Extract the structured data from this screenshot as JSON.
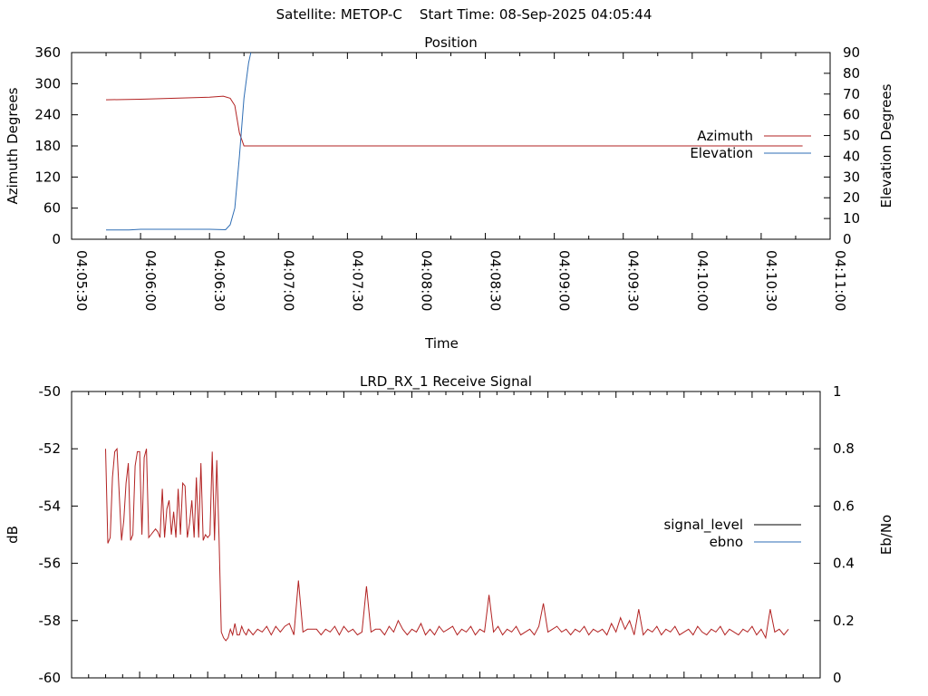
{
  "header": {
    "text": "Satellite: METOP-C    Start Time: 08-Sep-2025 04:05:44"
  },
  "chart_data": [
    {
      "type": "line",
      "title": "Position",
      "xlabel": "Time",
      "ylabel": "Azimuth Degrees",
      "y2label": "Elevation Degrees",
      "xlim": [
        "04:05:30",
        "04:11:00"
      ],
      "ylim": [
        0,
        360
      ],
      "y2lim": [
        0,
        90
      ],
      "x_ticks": [
        "04:05:30",
        "04:06:00",
        "04:06:30",
        "04:07:00",
        "04:07:30",
        "04:08:00",
        "04:08:30",
        "04:09:00",
        "04:09:30",
        "04:10:00",
        "04:10:30",
        "04:11:00"
      ],
      "y_ticks": [
        0,
        60,
        120,
        180,
        240,
        300,
        360
      ],
      "y2_ticks": [
        0,
        10,
        20,
        30,
        40,
        50,
        60,
        70,
        80,
        90
      ],
      "legend_position": "right",
      "series": [
        {
          "name": "Azimuth",
          "axis": "left",
          "color": "#b22222",
          "points": [
            [
              "04:05:45",
              269
            ],
            [
              "04:06:00",
              270
            ],
            [
              "04:06:15",
              272
            ],
            [
              "04:06:30",
              274
            ],
            [
              "04:06:36",
              276
            ],
            [
              "04:06:39",
              272
            ],
            [
              "04:06:41",
              258
            ],
            [
              "04:06:43",
              205
            ],
            [
              "04:06:45",
              180
            ],
            [
              "04:07:00",
              180
            ],
            [
              "04:08:00",
              180
            ],
            [
              "04:09:00",
              180
            ],
            [
              "04:10:00",
              180
            ],
            [
              "04:10:48",
              180
            ]
          ]
        },
        {
          "name": "Elevation",
          "axis": "right",
          "color": "#2e6db4",
          "points": [
            [
              "04:05:45",
              4.5
            ],
            [
              "04:05:55",
              4.5
            ],
            [
              "04:06:00",
              4.8
            ],
            [
              "04:06:30",
              4.8
            ],
            [
              "04:06:37",
              4.6
            ],
            [
              "04:06:39",
              7
            ],
            [
              "04:06:41",
              15
            ],
            [
              "04:06:43",
              40
            ],
            [
              "04:06:45",
              68
            ],
            [
              "04:06:47",
              85
            ],
            [
              "04:06:48",
              90
            ]
          ]
        }
      ]
    },
    {
      "type": "line",
      "title": "LRD_RX_1 Receive Signal",
      "xlabel": "",
      "ylabel": "dB",
      "y2label": "Eb/No",
      "xlim": [
        "04:05:30",
        "04:11:00"
      ],
      "ylim": [
        -60,
        -50
      ],
      "y2lim": [
        0,
        1
      ],
      "y_ticks": [
        -60,
        -58,
        -56,
        -54,
        -52,
        -50
      ],
      "y2_ticks": [
        0,
        0.2,
        0.4,
        0.6,
        0.8,
        1
      ],
      "legend_position": "right",
      "series": [
        {
          "name": "signal_level",
          "axis": "left",
          "color": "#000000",
          "legend_only": true,
          "points": []
        },
        {
          "name": "ebno",
          "axis": "left",
          "color": "#2e6db4",
          "legend_only": true,
          "points": []
        },
        {
          "name": "",
          "axis": "left",
          "color": "#b22222",
          "points": [
            [
              "04:05:45",
              -52
            ],
            [
              "04:05:46",
              -55.3
            ],
            [
              "04:05:47",
              -55.1
            ],
            [
              "04:05:48",
              -53
            ],
            [
              "04:05:49",
              -52.1
            ],
            [
              "04:05:50",
              -52
            ],
            [
              "04:05:51",
              -53.6
            ],
            [
              "04:05:52",
              -55.2
            ],
            [
              "04:05:53",
              -54.5
            ],
            [
              "04:05:54",
              -53.2
            ],
            [
              "04:05:55",
              -52.5
            ],
            [
              "04:05:56",
              -55.2
            ],
            [
              "04:05:57",
              -55
            ],
            [
              "04:05:58",
              -52.6
            ],
            [
              "04:05:59",
              -52.1
            ],
            [
              "04:06:00",
              -52.1
            ],
            [
              "04:06:01",
              -55
            ],
            [
              "04:06:02",
              -52.3
            ],
            [
              "04:06:03",
              -52
            ],
            [
              "04:06:04",
              -55.1
            ],
            [
              "04:06:05",
              -55
            ],
            [
              "04:06:06",
              -54.9
            ],
            [
              "04:06:07",
              -54.8
            ],
            [
              "04:06:08",
              -54.9
            ],
            [
              "04:06:09",
              -55.1
            ],
            [
              "04:06:10",
              -53.4
            ],
            [
              "04:06:11",
              -55.1
            ],
            [
              "04:06:12",
              -54.1
            ],
            [
              "04:06:13",
              -53.8
            ],
            [
              "04:06:14",
              -55
            ],
            [
              "04:06:15",
              -54.2
            ],
            [
              "04:06:16",
              -55.1
            ],
            [
              "04:06:17",
              -53.4
            ],
            [
              "04:06:18",
              -55
            ],
            [
              "04:06:19",
              -53.2
            ],
            [
              "04:06:20",
              -53.3
            ],
            [
              "04:06:21",
              -55.1
            ],
            [
              "04:06:22",
              -54.6
            ],
            [
              "04:06:23",
              -53.8
            ],
            [
              "04:06:24",
              -55.1
            ],
            [
              "04:06:25",
              -53
            ],
            [
              "04:06:26",
              -55.1
            ],
            [
              "04:06:27",
              -52.5
            ],
            [
              "04:06:28",
              -55.2
            ],
            [
              "04:06:29",
              -55
            ],
            [
              "04:06:30",
              -55.1
            ],
            [
              "04:06:31",
              -55
            ],
            [
              "04:06:32",
              -52.1
            ],
            [
              "04:06:33",
              -55.2
            ],
            [
              "04:06:34",
              -52.4
            ],
            [
              "04:06:35",
              -55.1
            ],
            [
              "04:06:36",
              -58.4
            ],
            [
              "04:06:37",
              -58.6
            ],
            [
              "04:06:38",
              -58.7
            ],
            [
              "04:06:39",
              -58.6
            ],
            [
              "04:06:40",
              -58.3
            ],
            [
              "04:06:41",
              -58.5
            ],
            [
              "04:06:42",
              -58.1
            ],
            [
              "04:06:43",
              -58.5
            ],
            [
              "04:06:44",
              -58.5
            ],
            [
              "04:06:45",
              -58.2
            ],
            [
              "04:06:46",
              -58.4
            ],
            [
              "04:06:47",
              -58.5
            ],
            [
              "04:06:48",
              -58.3
            ],
            [
              "04:06:50",
              -58.5
            ],
            [
              "04:06:52",
              -58.3
            ],
            [
              "04:06:54",
              -58.4
            ],
            [
              "04:06:56",
              -58.2
            ],
            [
              "04:06:58",
              -58.5
            ],
            [
              "04:07:00",
              -58.2
            ],
            [
              "04:07:02",
              -58.4
            ],
            [
              "04:07:04",
              -58.2
            ],
            [
              "04:07:06",
              -58.1
            ],
            [
              "04:07:08",
              -58.5
            ],
            [
              "04:07:10",
              -56.6
            ],
            [
              "04:07:12",
              -58.4
            ],
            [
              "04:07:14",
              -58.3
            ],
            [
              "04:07:16",
              -58.3
            ],
            [
              "04:07:18",
              -58.3
            ],
            [
              "04:07:20",
              -58.5
            ],
            [
              "04:07:22",
              -58.3
            ],
            [
              "04:07:24",
              -58.4
            ],
            [
              "04:07:26",
              -58.2
            ],
            [
              "04:07:28",
              -58.5
            ],
            [
              "04:07:30",
              -58.2
            ],
            [
              "04:07:32",
              -58.4
            ],
            [
              "04:07:34",
              -58.3
            ],
            [
              "04:07:36",
              -58.5
            ],
            [
              "04:07:38",
              -58.4
            ],
            [
              "04:07:40",
              -56.8
            ],
            [
              "04:07:42",
              -58.4
            ],
            [
              "04:07:44",
              -58.3
            ],
            [
              "04:07:46",
              -58.3
            ],
            [
              "04:07:48",
              -58.5
            ],
            [
              "04:07:50",
              -58.2
            ],
            [
              "04:07:52",
              -58.4
            ],
            [
              "04:07:54",
              -58
            ],
            [
              "04:07:56",
              -58.3
            ],
            [
              "04:07:58",
              -58.5
            ],
            [
              "04:08:00",
              -58.3
            ],
            [
              "04:08:02",
              -58.4
            ],
            [
              "04:08:04",
              -58.1
            ],
            [
              "04:08:06",
              -58.5
            ],
            [
              "04:08:08",
              -58.3
            ],
            [
              "04:08:10",
              -58.5
            ],
            [
              "04:08:12",
              -58.2
            ],
            [
              "04:08:14",
              -58.4
            ],
            [
              "04:08:16",
              -58.3
            ],
            [
              "04:08:18",
              -58.2
            ],
            [
              "04:08:20",
              -58.5
            ],
            [
              "04:08:22",
              -58.3
            ],
            [
              "04:08:24",
              -58.4
            ],
            [
              "04:08:26",
              -58.2
            ],
            [
              "04:08:28",
              -58.5
            ],
            [
              "04:08:30",
              -58.3
            ],
            [
              "04:08:32",
              -58.4
            ],
            [
              "04:08:34",
              -57.1
            ],
            [
              "04:08:36",
              -58.4
            ],
            [
              "04:08:38",
              -58.2
            ],
            [
              "04:08:40",
              -58.5
            ],
            [
              "04:08:42",
              -58.3
            ],
            [
              "04:08:44",
              -58.4
            ],
            [
              "04:08:46",
              -58.2
            ],
            [
              "04:08:48",
              -58.5
            ],
            [
              "04:08:50",
              -58.4
            ],
            [
              "04:08:52",
              -58.3
            ],
            [
              "04:08:54",
              -58.5
            ],
            [
              "04:08:56",
              -58.2
            ],
            [
              "04:08:58",
              -57.4
            ],
            [
              "04:09:00",
              -58.4
            ],
            [
              "04:09:02",
              -58.3
            ],
            [
              "04:09:04",
              -58.2
            ],
            [
              "04:09:06",
              -58.4
            ],
            [
              "04:09:08",
              -58.3
            ],
            [
              "04:09:10",
              -58.5
            ],
            [
              "04:09:12",
              -58.3
            ],
            [
              "04:09:14",
              -58.4
            ],
            [
              "04:09:16",
              -58.2
            ],
            [
              "04:09:18",
              -58.5
            ],
            [
              "04:09:20",
              -58.3
            ],
            [
              "04:09:22",
              -58.4
            ],
            [
              "04:09:24",
              -58.3
            ],
            [
              "04:09:26",
              -58.5
            ],
            [
              "04:09:28",
              -58.1
            ],
            [
              "04:09:30",
              -58.4
            ],
            [
              "04:09:32",
              -57.9
            ],
            [
              "04:09:34",
              -58.3
            ],
            [
              "04:09:36",
              -58
            ],
            [
              "04:09:38",
              -58.5
            ],
            [
              "04:09:40",
              -57.6
            ],
            [
              "04:09:42",
              -58.5
            ],
            [
              "04:09:44",
              -58.3
            ],
            [
              "04:09:46",
              -58.4
            ],
            [
              "04:09:48",
              -58.2
            ],
            [
              "04:09:50",
              -58.5
            ],
            [
              "04:09:52",
              -58.3
            ],
            [
              "04:09:54",
              -58.4
            ],
            [
              "04:09:56",
              -58.2
            ],
            [
              "04:09:58",
              -58.5
            ],
            [
              "04:10:00",
              -58.4
            ],
            [
              "04:10:02",
              -58.3
            ],
            [
              "04:10:04",
              -58.5
            ],
            [
              "04:10:06",
              -58.2
            ],
            [
              "04:10:08",
              -58.4
            ],
            [
              "04:10:10",
              -58.5
            ],
            [
              "04:10:12",
              -58.3
            ],
            [
              "04:10:14",
              -58.4
            ],
            [
              "04:10:16",
              -58.2
            ],
            [
              "04:10:18",
              -58.5
            ],
            [
              "04:10:20",
              -58.3
            ],
            [
              "04:10:22",
              -58.4
            ],
            [
              "04:10:24",
              -58.5
            ],
            [
              "04:10:26",
              -58.3
            ],
            [
              "04:10:28",
              -58.4
            ],
            [
              "04:10:30",
              -58.2
            ],
            [
              "04:10:32",
              -58.5
            ],
            [
              "04:10:34",
              -58.3
            ],
            [
              "04:10:36",
              -58.6
            ],
            [
              "04:10:38",
              -57.6
            ],
            [
              "04:10:40",
              -58.4
            ],
            [
              "04:10:42",
              -58.3
            ],
            [
              "04:10:44",
              -58.5
            ],
            [
              "04:10:46",
              -58.3
            ]
          ]
        }
      ]
    }
  ]
}
